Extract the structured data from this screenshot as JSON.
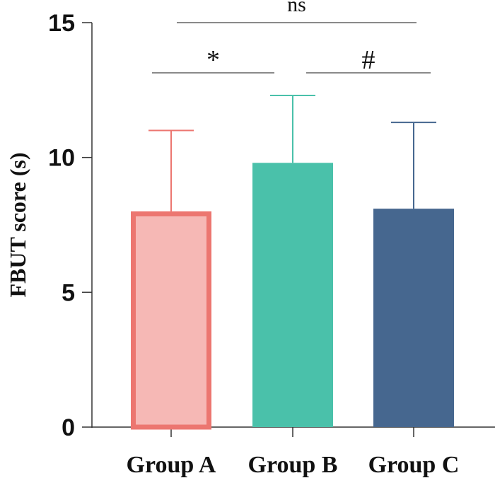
{
  "chart_data": {
    "type": "bar",
    "title": "",
    "xlabel": "",
    "ylabel": "FBUT score (s)",
    "ylim": [
      0,
      15
    ],
    "yticks": [
      0,
      5,
      10,
      15
    ],
    "categories": [
      "Group A",
      "Group B",
      "Group C"
    ],
    "values": [
      8.0,
      9.8,
      8.1
    ],
    "errors": [
      3.0,
      2.5,
      3.2
    ],
    "bar_colors": [
      "#F6B8B5",
      "#4AC1AA",
      "#46678F"
    ],
    "bar_edge_colors": [
      "#EC7670",
      "#4AC1AA",
      "#46678F"
    ],
    "error_colors": [
      "#EC7670",
      "#4AC1AA",
      "#46678F"
    ],
    "grid": false,
    "significance": [
      {
        "label": "ns",
        "from": 0,
        "to": 2,
        "y": 15.0
      },
      {
        "label": "*",
        "from": 0,
        "to": 1,
        "y": 13.3
      },
      {
        "label": "#",
        "from": 1,
        "to": 2,
        "y": 13.3
      }
    ]
  }
}
